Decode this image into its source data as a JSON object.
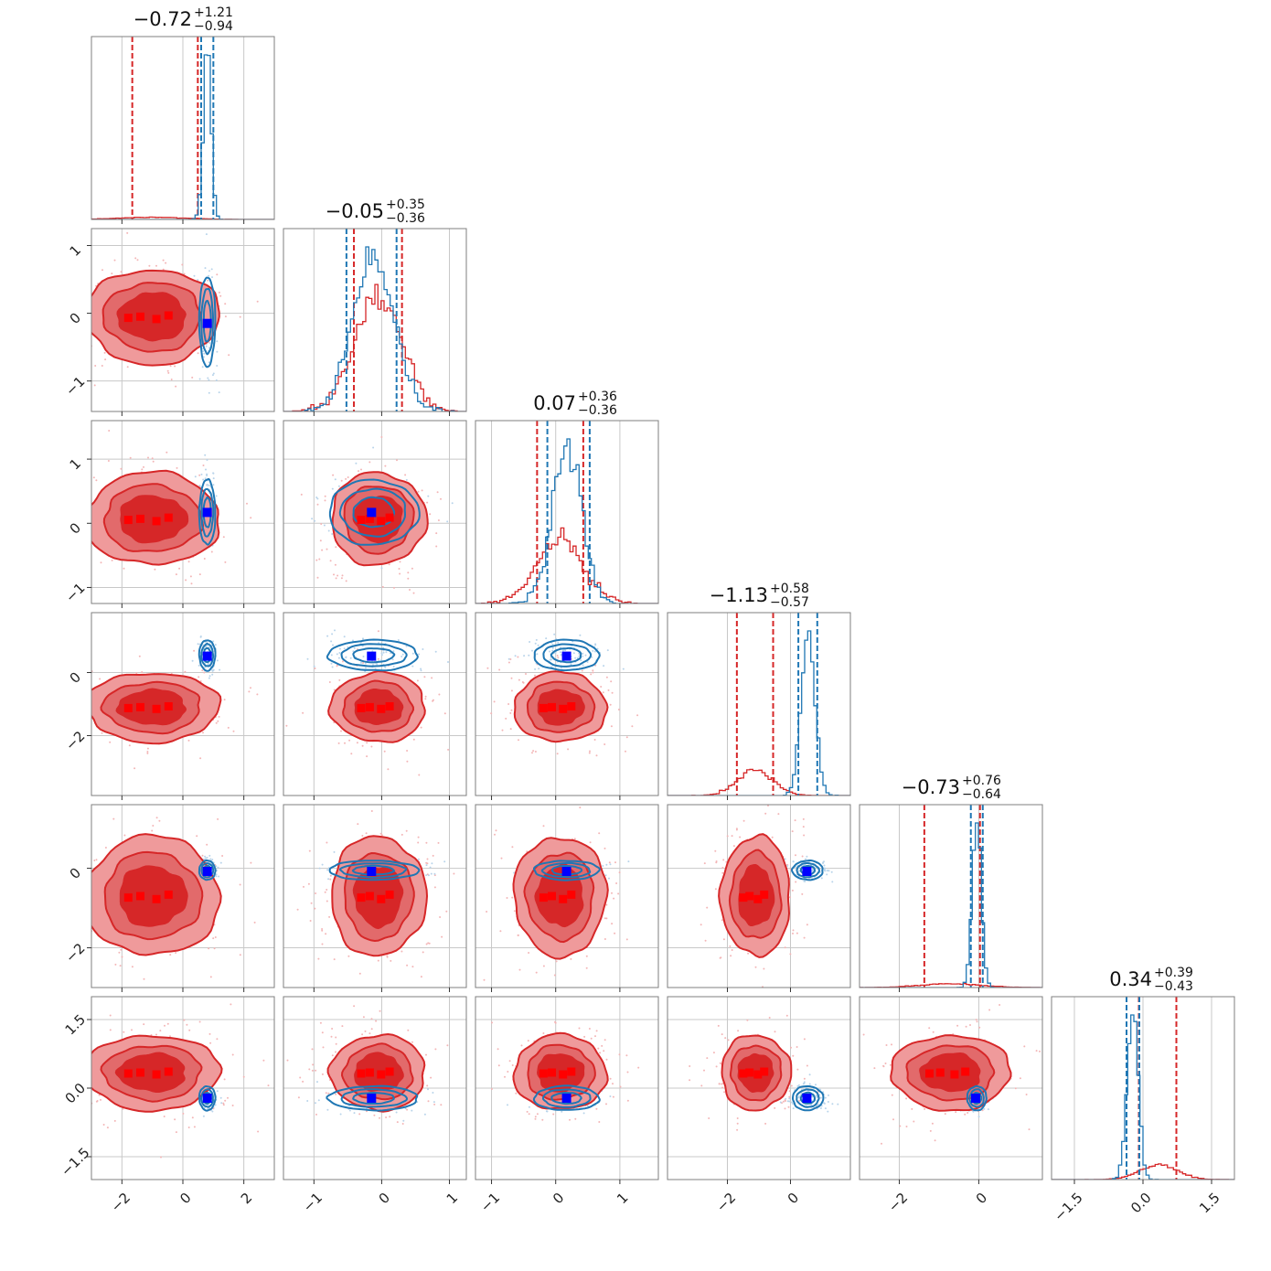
{
  "figure": {
    "type": "corner",
    "colors": {
      "red": "#d62728",
      "red_light": "#ef9a9b",
      "blue": "#1f77b4",
      "blue_light": "#b9d4ea",
      "marker_blue": "#0000ff",
      "marker_red": "#ff0000"
    }
  },
  "chart_data": {
    "type": "corner",
    "grid": true,
    "parameters": [
      {
        "title_main": "−0.72",
        "title_sup": "+1.21",
        "title_sub": "−0.94",
        "range": [
          -3.0,
          3.0
        ],
        "ticks": [
          -2,
          0,
          2
        ],
        "tick_labels": [
          "−2",
          "0",
          "2"
        ],
        "red": {
          "mean": -1.0,
          "sd": 1.1,
          "q": [
            -1.66,
            0.49
          ]
        },
        "blue": {
          "mean": 0.8,
          "sd": 0.12,
          "q": [
            0.6,
            1.0
          ]
        },
        "truth": 0.8
      },
      {
        "title_main": "−0.05",
        "title_sup": "+0.35",
        "title_sub": "−0.36",
        "range": [
          -1.45,
          1.25
        ],
        "ticks": [
          -1,
          0,
          1
        ],
        "tick_labels": [
          "−1",
          "0",
          "1"
        ],
        "red": {
          "mean": -0.05,
          "sd": 0.35,
          "q": [
            -0.41,
            0.3
          ]
        },
        "blue": {
          "mean": -0.12,
          "sd": 0.3,
          "q": [
            -0.52,
            0.22
          ]
        },
        "truth": -0.15
      },
      {
        "title_main": "0.07",
        "title_sup": "+0.36",
        "title_sub": "−0.36",
        "range": [
          -1.25,
          1.6
        ],
        "ticks": [
          -1,
          0,
          1
        ],
        "tick_labels": [
          "−1",
          "0",
          "1"
        ],
        "red": {
          "mean": 0.07,
          "sd": 0.36,
          "q": [
            -0.29,
            0.43
          ]
        },
        "blue": {
          "mean": 0.17,
          "sd": 0.23,
          "q": [
            -0.13,
            0.53
          ]
        },
        "truth": 0.17
      },
      {
        "title_main": "−1.13",
        "title_sup": "+0.58",
        "title_sub": "−0.57",
        "range": [
          -3.9,
          1.9
        ],
        "ticks": [
          -2,
          0
        ],
        "tick_labels": [
          "−2",
          "0"
        ],
        "red": {
          "mean": -1.1,
          "sd": 0.55,
          "q": [
            -1.7,
            -0.55
          ]
        },
        "blue": {
          "mean": 0.55,
          "sd": 0.22,
          "q": [
            0.25,
            0.85
          ]
        },
        "truth": 0.52
      },
      {
        "title_main": "−0.73",
        "title_sup": "+0.76",
        "title_sub": "−0.64",
        "range": [
          -3.0,
          1.6
        ],
        "ticks": [
          -2,
          0
        ],
        "tick_labels": [
          "−2",
          "0"
        ],
        "red": {
          "mean": -0.7,
          "sd": 0.75,
          "q": [
            -1.37,
            0.03
          ]
        },
        "blue": {
          "mean": -0.05,
          "sd": 0.11,
          "q": [
            -0.2,
            0.1
          ]
        },
        "truth": -0.08
      },
      {
        "title_main": "0.34",
        "title_sup": "+0.39",
        "title_sub": "−0.43",
        "range": [
          -2.0,
          2.0
        ],
        "ticks": [
          -1.5,
          0,
          1.5
        ],
        "tick_labels": [
          "−1.5",
          "0.0",
          "1.5"
        ],
        "red": {
          "mean": 0.34,
          "sd": 0.41,
          "q": [
            -0.09,
            0.73
          ]
        },
        "blue": {
          "mean": -0.22,
          "sd": 0.12,
          "q": [
            -0.36,
            -0.08
          ]
        },
        "truth": -0.22
      }
    ]
  }
}
